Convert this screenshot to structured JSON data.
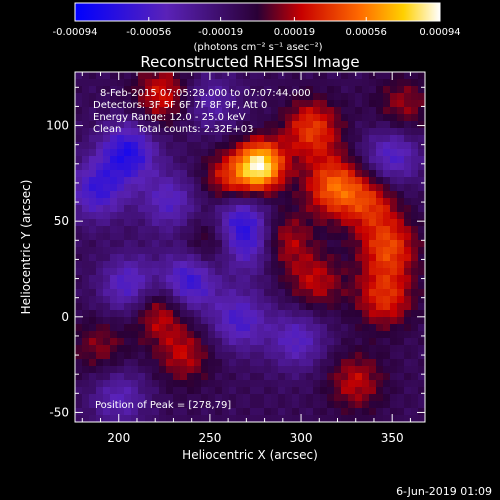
{
  "chart_data": {
    "type": "heatmap",
    "title": "Reconstructed RHESSI Image",
    "xlabel": "Heliocentric X (arcsec)",
    "ylabel": "Heliocentric Y (arcsec)",
    "xlim": [
      176,
      368
    ],
    "ylim": [
      -55,
      128
    ],
    "x_ticks": [
      200,
      250,
      300,
      350
    ],
    "y_ticks": [
      -50,
      0,
      50,
      100
    ],
    "colorbar": {
      "range": [
        -0.00094,
        0.00094
      ],
      "ticks": [
        "-0.00094",
        "-0.00056",
        "-0.00019",
        "0.00019",
        "0.00056",
        "0.00094"
      ],
      "unit_label": "(photons cm⁻² s⁻¹ asec⁻²)"
    },
    "info_lines": [
      "8-Feb-2015 07:05:28.000 to 07:07:44.000",
      "Detectors: 3F 5F 6F 7F 8F 9F, Att 0",
      "Energy Range: 12.0 - 25.0 keV",
      "Clean     Total counts: 2.32E+03"
    ],
    "peak_label": "Position of Peak = [278,79]",
    "peak_position": [
      278,
      79
    ],
    "sources": [
      {
        "x": 278,
        "y": 79,
        "v": 0.00094
      },
      {
        "x": 262,
        "y": 70,
        "v": 0.00055
      },
      {
        "x": 318,
        "y": 68,
        "v": 0.00058
      },
      {
        "x": 306,
        "y": 98,
        "v": 0.0005
      },
      {
        "x": 348,
        "y": 36,
        "v": 0.0005
      },
      {
        "x": 338,
        "y": 60,
        "v": 0.00042
      },
      {
        "x": 346,
        "y": 10,
        "v": 0.00045
      },
      {
        "x": 224,
        "y": 116,
        "v": 0.0004
      },
      {
        "x": 222,
        "y": 4,
        "v": 0.00042
      },
      {
        "x": 252,
        "y": 40,
        "v": 0.00032
      },
      {
        "x": 290,
        "y": 40,
        "v": 0.00035
      },
      {
        "x": 308,
        "y": 18,
        "v": 0.00033
      },
      {
        "x": 236,
        "y": -20,
        "v": 0.00032
      },
      {
        "x": 330,
        "y": -34,
        "v": 0.00034
      },
      {
        "x": 190,
        "y": -16,
        "v": 0.00025
      },
      {
        "x": 356,
        "y": 110,
        "v": 0.00028
      },
      {
        "x": 265,
        "y": 55,
        "v": -0.00055
      },
      {
        "x": 270,
        "y": 38,
        "v": -0.0005
      },
      {
        "x": 205,
        "y": 86,
        "v": -0.00062
      },
      {
        "x": 188,
        "y": 66,
        "v": -0.0005
      },
      {
        "x": 206,
        "y": 16,
        "v": -0.00048
      },
      {
        "x": 238,
        "y": 18,
        "v": -0.00058
      },
      {
        "x": 266,
        "y": -2,
        "v": -0.00045
      },
      {
        "x": 350,
        "y": 84,
        "v": -0.00045
      },
      {
        "x": 298,
        "y": -12,
        "v": -0.0004
      },
      {
        "x": 228,
        "y": 60,
        "v": -0.0004
      },
      {
        "x": 250,
        "y": 112,
        "v": -0.0003
      },
      {
        "x": 200,
        "y": -42,
        "v": -0.00035
      }
    ]
  },
  "footer": {
    "timestamp": "6-Jun-2019 01:09"
  }
}
